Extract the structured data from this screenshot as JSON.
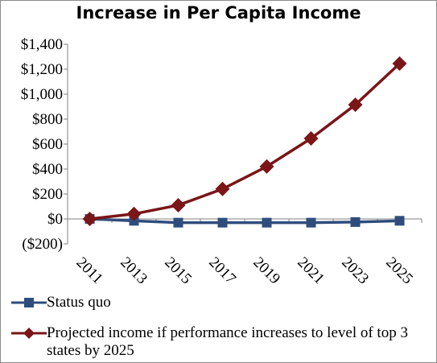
{
  "chart_data": {
    "type": "line",
    "title": "Increase in Per Capita Income",
    "categories": [
      "2011",
      "2013",
      "2015",
      "2017",
      "2019",
      "2021",
      "2023",
      "2025"
    ],
    "ylim": [
      -200,
      1400
    ],
    "yticks": [
      -200,
      0,
      200,
      400,
      600,
      800,
      1000,
      1200,
      1400
    ],
    "ytick_labels": [
      "($200)",
      "$0",
      "$200",
      "$400",
      "$600",
      "$800",
      "$1,000",
      "$1,200",
      "$1,400"
    ],
    "grid": false,
    "legend_position": "bottom",
    "series": [
      {
        "name": "Status quo",
        "color": "#2f4d7c",
        "marker": "square",
        "values": [
          0,
          -15,
          -30,
          -30,
          -30,
          -30,
          -25,
          -15
        ]
      },
      {
        "name": "Projected income if performance increases to level of top 3 states by 2025",
        "color": "#7a1518",
        "marker": "diamond",
        "values": [
          0,
          40,
          110,
          240,
          420,
          645,
          915,
          1245
        ]
      }
    ]
  }
}
